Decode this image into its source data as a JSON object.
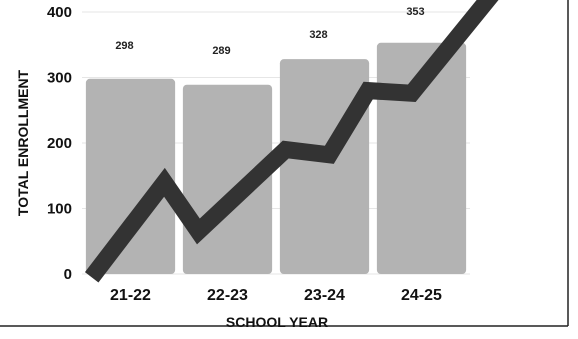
{
  "chart_data": {
    "type": "bar",
    "categories": [
      "21-22",
      "22-23",
      "23-24",
      "24-25"
    ],
    "values": [
      298,
      289,
      328,
      353
    ],
    "data_labels": [
      "298",
      "289",
      "328",
      "353"
    ],
    "xlabel": "SCHOOL YEAR",
    "ylabel": "TOTAL ENROLLMENT",
    "ylim": [
      0,
      400
    ],
    "yticks": [
      "0",
      "100",
      "200",
      "300",
      "400"
    ],
    "grid": true,
    "bar_color": "#b3b3b3",
    "trend_line_color": "#333333",
    "trend_line_points": [
      {
        "x": 0.0,
        "y": -5
      },
      {
        "x": 0.75,
        "y": 140
      },
      {
        "x": 1.1,
        "y": 65
      },
      {
        "x": 2.0,
        "y": 190
      },
      {
        "x": 2.45,
        "y": 182
      },
      {
        "x": 2.85,
        "y": 280
      },
      {
        "x": 3.3,
        "y": 276
      },
      {
        "x": 4.2,
        "y": 440
      }
    ]
  }
}
